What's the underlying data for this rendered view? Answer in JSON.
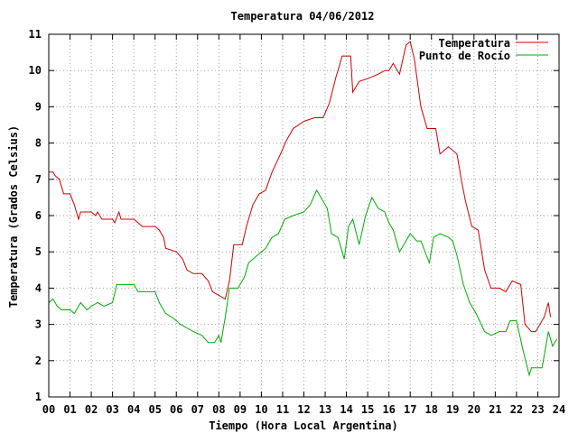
{
  "chart_data": {
    "type": "line",
    "title": "Temperatura 04/06/2012",
    "xlabel": "Tiempo (Hora Local Argentina)",
    "ylabel": "Temperatura (Grados Celsius)",
    "xlim": [
      0,
      24
    ],
    "ylim": [
      1,
      11
    ],
    "x_ticks": [
      0,
      1,
      2,
      3,
      4,
      5,
      6,
      7,
      8,
      9,
      10,
      11,
      12,
      13,
      14,
      15,
      16,
      17,
      18,
      19,
      20,
      21,
      22,
      23,
      24
    ],
    "x_tick_labels": [
      "00",
      "01",
      "02",
      "03",
      "04",
      "05",
      "06",
      "07",
      "08",
      "09",
      "10",
      "11",
      "12",
      "13",
      "14",
      "15",
      "16",
      "17",
      "18",
      "19",
      "20",
      "21",
      "22",
      "23",
      "24"
    ],
    "y_ticks": [
      1,
      2,
      3,
      4,
      5,
      6,
      7,
      8,
      9,
      10,
      11
    ],
    "y_tick_labels": [
      "1",
      "2",
      "3",
      "4",
      "5",
      "6",
      "7",
      "8",
      "9",
      "10",
      "11"
    ],
    "grid": true,
    "legend_position": "top-right",
    "series": [
      {
        "name": "Temperatura",
        "color": "#cc0000",
        "points": [
          [
            0.0,
            7.2
          ],
          [
            0.2,
            7.2
          ],
          [
            0.3,
            7.1
          ],
          [
            0.5,
            7.0
          ],
          [
            0.6,
            6.8
          ],
          [
            0.7,
            6.6
          ],
          [
            1.0,
            6.6
          ],
          [
            1.2,
            6.3
          ],
          [
            1.3,
            6.1
          ],
          [
            1.4,
            5.9
          ],
          [
            1.5,
            6.1
          ],
          [
            2.0,
            6.1
          ],
          [
            2.2,
            6.0
          ],
          [
            2.3,
            6.1
          ],
          [
            2.5,
            5.9
          ],
          [
            3.0,
            5.9
          ],
          [
            3.1,
            5.8
          ],
          [
            3.3,
            6.1
          ],
          [
            3.4,
            5.9
          ],
          [
            4.0,
            5.9
          ],
          [
            4.2,
            5.8
          ],
          [
            4.4,
            5.7
          ],
          [
            5.0,
            5.7
          ],
          [
            5.2,
            5.6
          ],
          [
            5.4,
            5.4
          ],
          [
            5.5,
            5.1
          ],
          [
            6.0,
            5.0
          ],
          [
            6.3,
            4.8
          ],
          [
            6.5,
            4.5
          ],
          [
            6.8,
            4.4
          ],
          [
            7.2,
            4.4
          ],
          [
            7.5,
            4.2
          ],
          [
            7.7,
            3.9
          ],
          [
            8.0,
            3.8
          ],
          [
            8.3,
            3.7
          ],
          [
            8.5,
            4.2
          ],
          [
            8.7,
            5.2
          ],
          [
            9.1,
            5.2
          ],
          [
            9.3,
            5.7
          ],
          [
            9.6,
            6.3
          ],
          [
            9.9,
            6.6
          ],
          [
            10.2,
            6.7
          ],
          [
            10.5,
            7.2
          ],
          [
            10.9,
            7.7
          ],
          [
            11.2,
            8.1
          ],
          [
            11.5,
            8.4
          ],
          [
            12.0,
            8.6
          ],
          [
            12.5,
            8.7
          ],
          [
            12.9,
            8.7
          ],
          [
            13.2,
            9.1
          ],
          [
            13.5,
            9.8
          ],
          [
            13.8,
            10.4
          ],
          [
            14.2,
            10.4
          ],
          [
            14.3,
            9.4
          ],
          [
            14.6,
            9.7
          ],
          [
            15.1,
            9.8
          ],
          [
            15.5,
            9.9
          ],
          [
            15.8,
            10.0
          ],
          [
            16.0,
            10.0
          ],
          [
            16.2,
            10.2
          ],
          [
            16.5,
            9.9
          ],
          [
            16.8,
            10.7
          ],
          [
            17.0,
            10.8
          ],
          [
            17.2,
            10.3
          ],
          [
            17.5,
            9.0
          ],
          [
            17.8,
            8.4
          ],
          [
            18.2,
            8.4
          ],
          [
            18.4,
            7.7
          ],
          [
            18.6,
            7.8
          ],
          [
            18.8,
            7.9
          ],
          [
            19.2,
            7.7
          ],
          [
            19.4,
            7.0
          ],
          [
            19.6,
            6.4
          ],
          [
            19.9,
            5.7
          ],
          [
            20.2,
            5.6
          ],
          [
            20.5,
            4.5
          ],
          [
            20.8,
            4.0
          ],
          [
            21.2,
            4.0
          ],
          [
            21.5,
            3.9
          ],
          [
            21.8,
            4.2
          ],
          [
            22.2,
            4.1
          ],
          [
            22.4,
            3.0
          ],
          [
            22.7,
            2.8
          ],
          [
            22.9,
            2.8
          ],
          [
            23.0,
            2.9
          ],
          [
            23.3,
            3.2
          ],
          [
            23.5,
            3.6
          ],
          [
            23.6,
            3.2
          ]
        ]
      },
      {
        "name": "Punto de Rocío",
        "color": "#00aa00",
        "points": [
          [
            0.0,
            3.6
          ],
          [
            0.2,
            3.7
          ],
          [
            0.4,
            3.5
          ],
          [
            0.6,
            3.4
          ],
          [
            1.0,
            3.4
          ],
          [
            1.2,
            3.3
          ],
          [
            1.5,
            3.6
          ],
          [
            1.8,
            3.4
          ],
          [
            2.0,
            3.5
          ],
          [
            2.3,
            3.6
          ],
          [
            2.6,
            3.5
          ],
          [
            3.0,
            3.6
          ],
          [
            3.2,
            4.1
          ],
          [
            3.6,
            4.1
          ],
          [
            4.0,
            4.1
          ],
          [
            4.2,
            3.9
          ],
          [
            4.5,
            3.9
          ],
          [
            5.0,
            3.9
          ],
          [
            5.2,
            3.6
          ],
          [
            5.5,
            3.3
          ],
          [
            5.8,
            3.2
          ],
          [
            6.2,
            3.0
          ],
          [
            6.5,
            2.9
          ],
          [
            6.8,
            2.8
          ],
          [
            7.2,
            2.7
          ],
          [
            7.5,
            2.5
          ],
          [
            7.8,
            2.5
          ],
          [
            8.0,
            2.7
          ],
          [
            8.1,
            2.5
          ],
          [
            8.3,
            3.2
          ],
          [
            8.5,
            4.0
          ],
          [
            8.9,
            4.0
          ],
          [
            9.2,
            4.3
          ],
          [
            9.4,
            4.7
          ],
          [
            9.8,
            4.9
          ],
          [
            10.2,
            5.1
          ],
          [
            10.5,
            5.4
          ],
          [
            10.8,
            5.5
          ],
          [
            11.1,
            5.9
          ],
          [
            11.5,
            6.0
          ],
          [
            12.0,
            6.1
          ],
          [
            12.3,
            6.3
          ],
          [
            12.6,
            6.7
          ],
          [
            12.9,
            6.4
          ],
          [
            13.1,
            6.2
          ],
          [
            13.3,
            5.5
          ],
          [
            13.6,
            5.4
          ],
          [
            13.8,
            5.0
          ],
          [
            13.9,
            4.8
          ],
          [
            14.1,
            5.7
          ],
          [
            14.3,
            5.9
          ],
          [
            14.6,
            5.2
          ],
          [
            14.9,
            6.0
          ],
          [
            15.2,
            6.5
          ],
          [
            15.5,
            6.2
          ],
          [
            15.8,
            6.1
          ],
          [
            16.0,
            5.8
          ],
          [
            16.2,
            5.6
          ],
          [
            16.5,
            5.0
          ],
          [
            16.7,
            5.2
          ],
          [
            17.0,
            5.5
          ],
          [
            17.3,
            5.3
          ],
          [
            17.5,
            5.3
          ],
          [
            17.9,
            4.7
          ],
          [
            18.1,
            5.4
          ],
          [
            18.4,
            5.5
          ],
          [
            18.8,
            5.4
          ],
          [
            19.0,
            5.3
          ],
          [
            19.2,
            4.9
          ],
          [
            19.5,
            4.1
          ],
          [
            19.8,
            3.6
          ],
          [
            20.1,
            3.3
          ],
          [
            20.5,
            2.8
          ],
          [
            20.8,
            2.7
          ],
          [
            21.2,
            2.8
          ],
          [
            21.5,
            2.8
          ],
          [
            21.7,
            3.1
          ],
          [
            22.0,
            3.1
          ],
          [
            22.3,
            2.3
          ],
          [
            22.6,
            1.6
          ],
          [
            22.7,
            1.8
          ],
          [
            23.2,
            1.8
          ],
          [
            23.5,
            2.8
          ],
          [
            23.6,
            2.6
          ],
          [
            23.7,
            2.4
          ],
          [
            23.9,
            2.6
          ]
        ]
      }
    ]
  }
}
